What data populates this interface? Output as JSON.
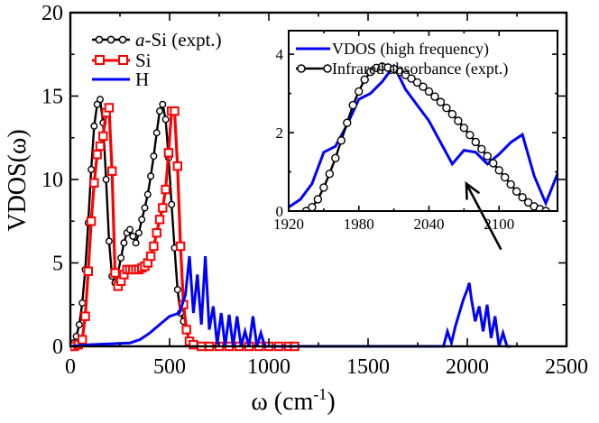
{
  "chart_data": [
    {
      "type": "line",
      "title": "",
      "xlabel": "ω (cm",
      "xlabel_sup": "-1",
      "xlabel_close": ")",
      "ylabel": "VDOS(ω)",
      "xlim": [
        0,
        2500
      ],
      "ylim": [
        0,
        20
      ],
      "xticks": [
        0,
        500,
        1000,
        1500,
        2000,
        2500
      ],
      "yticks": [
        0,
        5,
        10,
        15,
        20
      ],
      "legend_position": "top-left",
      "series": [
        {
          "name": "a-Si (expt.)",
          "legend_italic": "a",
          "legend_rest": "-Si (expt.)",
          "color": "#000000",
          "marker": "open-circle",
          "x": [
            0,
            15,
            30,
            45,
            60,
            75,
            90,
            105,
            120,
            135,
            150,
            165,
            180,
            195,
            210,
            225,
            240,
            255,
            270,
            285,
            300,
            315,
            330,
            345,
            360,
            375,
            390,
            405,
            420,
            435,
            450,
            465,
            480,
            495,
            510,
            525,
            540,
            555,
            570
          ],
          "y": [
            0,
            0.2,
            0.6,
            1.3,
            2.6,
            4.6,
            7.4,
            10.6,
            13.2,
            14.5,
            14.8,
            13.4,
            10.0,
            6.3,
            4.2,
            3.8,
            4.4,
            5.3,
            6.2,
            6.8,
            7.0,
            6.6,
            6.2,
            6.8,
            7.6,
            8.3,
            9.1,
            10.2,
            11.4,
            12.8,
            14.1,
            14.5,
            13.6,
            11.3,
            8.5,
            5.9,
            3.4,
            2.0,
            1.5
          ]
        },
        {
          "name": "Si",
          "color": "#ff0000",
          "marker": "open-square",
          "x": [
            0,
            20,
            40,
            60,
            75,
            90,
            105,
            120,
            135,
            150,
            165,
            180,
            195,
            210,
            225,
            240,
            255,
            270,
            285,
            300,
            315,
            330,
            345,
            360,
            375,
            390,
            405,
            420,
            435,
            450,
            465,
            480,
            495,
            510,
            525,
            540,
            555,
            570,
            585,
            600,
            620,
            660,
            700,
            750,
            800,
            850,
            900,
            950,
            1000,
            1050,
            1100,
            1130
          ],
          "y": [
            0,
            0,
            0.1,
            0.4,
            1.8,
            4.5,
            7.5,
            9.8,
            11.5,
            12.0,
            12.6,
            14.0,
            14.3,
            10.5,
            4.4,
            3.6,
            3.9,
            4.3,
            4.6,
            4.6,
            4.6,
            4.6,
            4.6,
            4.7,
            4.8,
            5.0,
            5.4,
            6.0,
            6.8,
            7.6,
            8.3,
            9.4,
            11.6,
            14.1,
            14.1,
            10.8,
            6.0,
            2.5,
            1.0,
            0.3,
            0.1,
            0,
            0,
            0,
            0,
            0,
            0,
            0,
            0,
            0,
            0,
            0
          ]
        },
        {
          "name": "H",
          "color": "#0000ff",
          "marker": "none",
          "x": [
            0,
            100,
            200,
            300,
            350,
            400,
            450,
            500,
            550,
            580,
            600,
            620,
            640,
            660,
            680,
            700,
            720,
            740,
            760,
            780,
            800,
            820,
            840,
            860,
            880,
            900,
            920,
            940,
            960,
            980,
            1000,
            1800,
            1860,
            1880,
            1900,
            1920,
            1940,
            1960,
            1980,
            2000,
            2010,
            2020,
            2040,
            2060,
            2080,
            2100,
            2120,
            2140,
            2160,
            2180,
            2200,
            2220
          ],
          "y": [
            0,
            0.1,
            0.15,
            0.2,
            0.4,
            0.8,
            1.3,
            1.8,
            2.0,
            3.1,
            5.4,
            2.0,
            4.3,
            1.3,
            5.4,
            1.0,
            2.4,
            0.1,
            2.0,
            0,
            1.9,
            0,
            1.8,
            0,
            0.9,
            0,
            1.8,
            0,
            0.8,
            0,
            0,
            0,
            0,
            0,
            0.9,
            0.2,
            1.2,
            2.0,
            2.8,
            3.4,
            3.8,
            2.9,
            1.5,
            2.4,
            0.9,
            2.5,
            0.5,
            1.8,
            0,
            0.8,
            0,
            0
          ]
        }
      ]
    },
    {
      "type": "line",
      "title": "",
      "xlabel": "",
      "ylabel": "",
      "xlim": [
        1920,
        2150
      ],
      "ylim": [
        0,
        4.6
      ],
      "xticks": [
        1920,
        1980,
        2040,
        2100
      ],
      "yticks": [
        0,
        2,
        4
      ],
      "legend_position": "top-right",
      "series": [
        {
          "name": "VDOS (high frequency)",
          "color": "#0000ff",
          "marker": "none",
          "x": [
            1920,
            1930,
            1940,
            1950,
            1960,
            1970,
            1980,
            1990,
            2000,
            2010,
            2020,
            2030,
            2040,
            2050,
            2060,
            2070,
            2080,
            2090,
            2100,
            2110,
            2120,
            2130,
            2140,
            2150
          ],
          "y": [
            0.1,
            0.3,
            0.7,
            1.5,
            1.65,
            2.2,
            2.85,
            3.0,
            3.3,
            3.7,
            3.1,
            2.7,
            2.3,
            1.75,
            1.2,
            1.55,
            1.5,
            1.2,
            1.45,
            1.75,
            1.95,
            0.9,
            0.2,
            0.95
          ]
        },
        {
          "name": "Infrared absorbance (expt.)",
          "color": "#000000",
          "marker": "open-circle",
          "x": [
            1935,
            1940,
            1945,
            1950,
            1955,
            1960,
            1965,
            1970,
            1975,
            1980,
            1985,
            1990,
            1995,
            2000,
            2005,
            2010,
            2015,
            2020,
            2025,
            2030,
            2035,
            2040,
            2045,
            2050,
            2055,
            2060,
            2065,
            2070,
            2075,
            2080,
            2085,
            2090,
            2095,
            2100,
            2105,
            2110,
            2115,
            2120,
            2125,
            2130,
            2135,
            2140
          ],
          "y": [
            0,
            0.1,
            0.3,
            0.6,
            0.95,
            1.35,
            1.8,
            2.25,
            2.7,
            3.05,
            3.35,
            3.55,
            3.65,
            3.68,
            3.66,
            3.62,
            3.55,
            3.47,
            3.38,
            3.28,
            3.17,
            3.05,
            2.92,
            2.78,
            2.63,
            2.47,
            2.3,
            2.12,
            1.94,
            1.76,
            1.58,
            1.4,
            1.22,
            1.04,
            0.86,
            0.68,
            0.5,
            0.35,
            0.22,
            0.12,
            0.05,
            0
          ]
        }
      ]
    }
  ],
  "annotation": {
    "type": "arrow",
    "from_main_xy": [
      2170,
      5.8
    ],
    "to_inset_xy": [
      2072,
      0.7
    ]
  }
}
